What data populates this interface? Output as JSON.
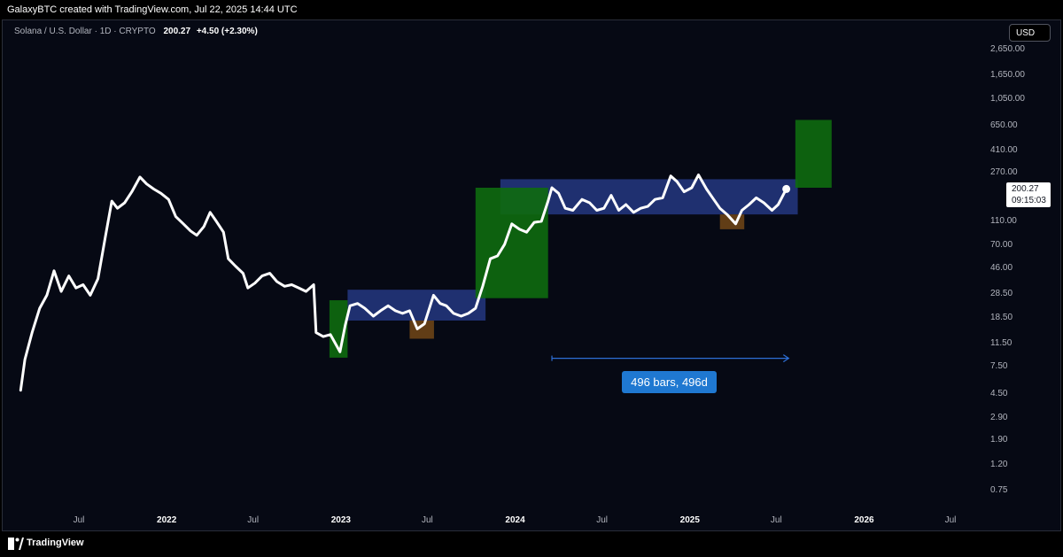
{
  "header": {
    "attribution": "GalaxyBTC created with TradingView.com, Jul 22, 2025 14:44 UTC"
  },
  "legend": {
    "symbol": "Solana / U.S. Dollar · 1D · CRYPTO",
    "last": "200.27",
    "change": "+4.50 (+2.30%)"
  },
  "currency_button": "USD",
  "price_badge": {
    "price": "200.27",
    "countdown": "09:15:03"
  },
  "measure": {
    "label": "496 bars, 496d"
  },
  "footer": {
    "brand": "TradingView"
  },
  "colors": {
    "price_line": "#ffffff",
    "range_box": "#283d8f",
    "green_zone": "#0e6b0e",
    "brown_zone": "#6b4416",
    "measure_line": "#2d6fd6",
    "background": "#060914"
  },
  "chart_data": {
    "type": "line",
    "y_scale": "log",
    "yticks": [
      "2,650.00",
      "1,650.00",
      "1,050.00",
      "650.00",
      "410.00",
      "270.00",
      "110.00",
      "70.00",
      "46.00",
      "28.50",
      "18.50",
      "11.50",
      "7.50",
      "4.50",
      "2.90",
      "1.90",
      "1.20",
      "0.75"
    ],
    "xticks": [
      {
        "label": "Jul",
        "date": "2021-07-01",
        "year": false
      },
      {
        "label": "2022",
        "date": "2022-01-01",
        "year": true
      },
      {
        "label": "Jul",
        "date": "2022-07-01",
        "year": false
      },
      {
        "label": "2023",
        "date": "2023-01-01",
        "year": true
      },
      {
        "label": "Jul",
        "date": "2023-07-01",
        "year": false
      },
      {
        "label": "2024",
        "date": "2024-01-01",
        "year": true
      },
      {
        "label": "Jul",
        "date": "2024-07-01",
        "year": false
      },
      {
        "label": "2025",
        "date": "2025-01-01",
        "year": true
      },
      {
        "label": "Jul",
        "date": "2025-07-01",
        "year": false
      },
      {
        "label": "2026",
        "date": "2026-01-01",
        "year": true
      },
      {
        "label": "Jul",
        "date": "2026-07-01",
        "year": false
      }
    ],
    "series": [
      {
        "points": [
          [
            "2021-03-01",
            4.8
          ],
          [
            "2021-03-10",
            8.5
          ],
          [
            "2021-03-25",
            14
          ],
          [
            "2021-04-10",
            22
          ],
          [
            "2021-04-25",
            28
          ],
          [
            "2021-05-10",
            44
          ],
          [
            "2021-05-25",
            30
          ],
          [
            "2021-06-10",
            40
          ],
          [
            "2021-06-25",
            32
          ],
          [
            "2021-07-10",
            34
          ],
          [
            "2021-07-25",
            28
          ],
          [
            "2021-08-10",
            38
          ],
          [
            "2021-08-25",
            80
          ],
          [
            "2021-09-08",
            160
          ],
          [
            "2021-09-20",
            140
          ],
          [
            "2021-10-05",
            155
          ],
          [
            "2021-10-20",
            190
          ],
          [
            "2021-11-06",
            250
          ],
          [
            "2021-11-20",
            220
          ],
          [
            "2021-12-05",
            200
          ],
          [
            "2021-12-20",
            185
          ],
          [
            "2022-01-05",
            165
          ],
          [
            "2022-01-20",
            120
          ],
          [
            "2022-02-05",
            105
          ],
          [
            "2022-02-20",
            92
          ],
          [
            "2022-03-05",
            85
          ],
          [
            "2022-03-20",
            100
          ],
          [
            "2022-04-02",
            130
          ],
          [
            "2022-04-15",
            110
          ],
          [
            "2022-04-30",
            90
          ],
          [
            "2022-05-10",
            55
          ],
          [
            "2022-05-25",
            48
          ],
          [
            "2022-06-10",
            42
          ],
          [
            "2022-06-20",
            32
          ],
          [
            "2022-07-05",
            35
          ],
          [
            "2022-07-20",
            40
          ],
          [
            "2022-08-05",
            42
          ],
          [
            "2022-08-20",
            36
          ],
          [
            "2022-09-05",
            33
          ],
          [
            "2022-09-20",
            34
          ],
          [
            "2022-10-05",
            32
          ],
          [
            "2022-10-20",
            30
          ],
          [
            "2022-11-05",
            34
          ],
          [
            "2022-11-10",
            14
          ],
          [
            "2022-11-25",
            13
          ],
          [
            "2022-12-10",
            13.5
          ],
          [
            "2022-12-30",
            9.8
          ],
          [
            "2023-01-10",
            16
          ],
          [
            "2023-01-20",
            23
          ],
          [
            "2023-02-05",
            24
          ],
          [
            "2023-02-20",
            22
          ],
          [
            "2023-03-10",
            19
          ],
          [
            "2023-03-25",
            21
          ],
          [
            "2023-04-10",
            23
          ],
          [
            "2023-04-25",
            21
          ],
          [
            "2023-05-10",
            20
          ],
          [
            "2023-05-25",
            21
          ],
          [
            "2023-06-10",
            15
          ],
          [
            "2023-06-25",
            16.5
          ],
          [
            "2023-07-14",
            28
          ],
          [
            "2023-07-28",
            24
          ],
          [
            "2023-08-10",
            23
          ],
          [
            "2023-08-25",
            20
          ],
          [
            "2023-09-10",
            19
          ],
          [
            "2023-09-25",
            20
          ],
          [
            "2023-10-10",
            22
          ],
          [
            "2023-10-25",
            33
          ],
          [
            "2023-11-10",
            55
          ],
          [
            "2023-11-25",
            58
          ],
          [
            "2023-12-10",
            72
          ],
          [
            "2023-12-25",
            105
          ],
          [
            "2024-01-10",
            95
          ],
          [
            "2024-01-25",
            90
          ],
          [
            "2024-02-10",
            108
          ],
          [
            "2024-02-25",
            110
          ],
          [
            "2024-03-10",
            160
          ],
          [
            "2024-03-18",
            205
          ],
          [
            "2024-04-01",
            185
          ],
          [
            "2024-04-15",
            140
          ],
          [
            "2024-05-01",
            135
          ],
          [
            "2024-05-20",
            165
          ],
          [
            "2024-06-05",
            155
          ],
          [
            "2024-06-20",
            135
          ],
          [
            "2024-07-05",
            140
          ],
          [
            "2024-07-20",
            178
          ],
          [
            "2024-08-05",
            135
          ],
          [
            "2024-08-20",
            150
          ],
          [
            "2024-09-05",
            130
          ],
          [
            "2024-09-20",
            140
          ],
          [
            "2024-10-05",
            145
          ],
          [
            "2024-10-20",
            165
          ],
          [
            "2024-11-05",
            170
          ],
          [
            "2024-11-22",
            255
          ],
          [
            "2024-12-05",
            230
          ],
          [
            "2024-12-20",
            190
          ],
          [
            "2025-01-05",
            205
          ],
          [
            "2025-01-19",
            260
          ],
          [
            "2025-02-05",
            200
          ],
          [
            "2025-02-20",
            165
          ],
          [
            "2025-03-05",
            140
          ],
          [
            "2025-03-20",
            125
          ],
          [
            "2025-04-07",
            105
          ],
          [
            "2025-04-20",
            135
          ],
          [
            "2025-05-05",
            150
          ],
          [
            "2025-05-20",
            170
          ],
          [
            "2025-06-05",
            155
          ],
          [
            "2025-06-22",
            135
          ],
          [
            "2025-07-05",
            150
          ],
          [
            "2025-07-22",
            200.27
          ]
        ]
      }
    ],
    "zones": [
      {
        "kind": "range",
        "from": "2023-01-15",
        "to": "2023-10-31",
        "low": 17.5,
        "high": 31
      },
      {
        "kind": "range",
        "from": "2023-12-01",
        "to": "2025-08-15",
        "low": 125,
        "high": 240
      },
      {
        "kind": "green",
        "from": "2022-12-08",
        "to": "2023-01-15",
        "low": 8.8,
        "high": 25.5
      },
      {
        "kind": "green",
        "from": "2023-10-10",
        "to": "2024-03-10",
        "low": 26.5,
        "high": 205
      },
      {
        "kind": "green",
        "from": "2025-08-10",
        "to": "2025-10-25",
        "low": 205,
        "high": 720
      },
      {
        "kind": "brown",
        "from": "2023-05-25",
        "to": "2023-07-15",
        "low": 12.5,
        "high": 17.5
      },
      {
        "kind": "brown",
        "from": "2025-03-05",
        "to": "2025-04-25",
        "low": 95,
        "high": 125
      }
    ],
    "measure": {
      "from": "2024-03-18",
      "to": "2025-07-27",
      "price": 8.7
    }
  }
}
